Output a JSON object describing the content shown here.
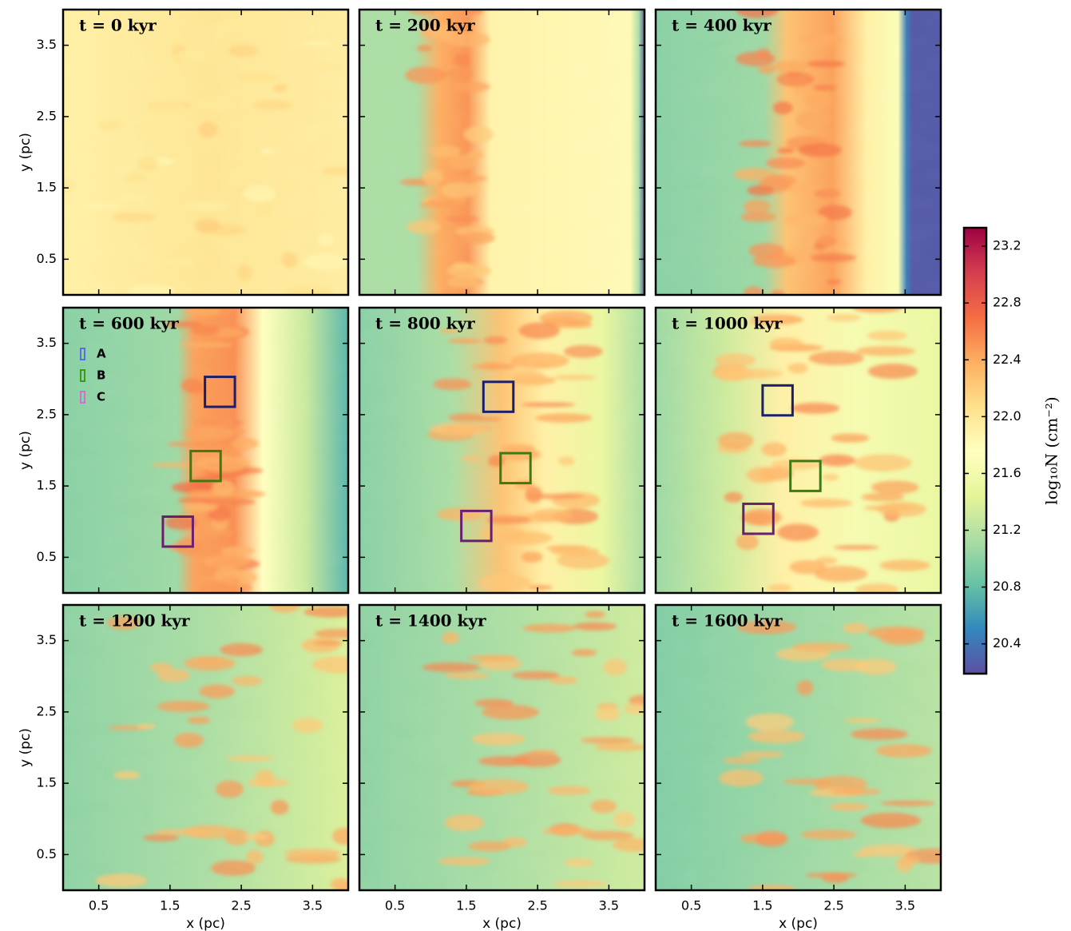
{
  "chart_data": [
    {
      "type": "image",
      "title": "t = 0 kyr",
      "xlim": [
        0,
        4
      ],
      "ylim": [
        0,
        4
      ],
      "xticks": [
        0.5,
        1.5,
        2.5,
        3.5
      ],
      "yticks": [
        0.5,
        1.5,
        2.5,
        3.5
      ],
      "ylabel": "y (pc)"
    },
    {
      "type": "image",
      "title": "t = 200 kyr",
      "xlim": [
        0,
        4
      ],
      "ylim": [
        0,
        4
      ],
      "xticks": [
        0.5,
        1.5,
        2.5,
        3.5
      ],
      "yticks": [
        0.5,
        1.5,
        2.5,
        3.5
      ]
    },
    {
      "type": "image",
      "title": "t = 400 kyr",
      "xlim": [
        0,
        4
      ],
      "ylim": [
        0,
        4
      ],
      "xticks": [
        0.5,
        1.5,
        2.5,
        3.5
      ],
      "yticks": [
        0.5,
        1.5,
        2.5,
        3.5
      ]
    },
    {
      "type": "image",
      "title": "t = 600 kyr",
      "xlim": [
        0,
        4
      ],
      "ylim": [
        0,
        4
      ],
      "xticks": [
        0.5,
        1.5,
        2.5,
        3.5
      ],
      "yticks": [
        0.5,
        1.5,
        2.5,
        3.5
      ],
      "ylabel": "y (pc)",
      "legend": "upper left",
      "boxes": [
        {
          "x": 1.99,
          "y": 2.61
        },
        {
          "x": 1.79,
          "y": 1.57
        },
        {
          "x": 1.4,
          "y": 0.65
        }
      ]
    },
    {
      "type": "image",
      "title": "t = 800 kyr",
      "xlim": [
        0,
        4
      ],
      "ylim": [
        0,
        4
      ],
      "xticks": [
        0.5,
        1.5,
        2.5,
        3.5
      ],
      "yticks": [
        0.5,
        1.5,
        2.5,
        3.5
      ],
      "boxes": [
        {
          "x": 1.74,
          "y": 2.54
        },
        {
          "x": 1.98,
          "y": 1.54
        },
        {
          "x": 1.43,
          "y": 0.73
        }
      ]
    },
    {
      "type": "image",
      "title": "t = 1000 kyr",
      "xlim": [
        0,
        4
      ],
      "ylim": [
        0,
        4
      ],
      "xticks": [
        0.5,
        1.5,
        2.5,
        3.5
      ],
      "yticks": [
        0.5,
        1.5,
        2.5,
        3.5
      ],
      "boxes": [
        {
          "x": 1.5,
          "y": 2.49
        },
        {
          "x": 1.89,
          "y": 1.43
        },
        {
          "x": 1.23,
          "y": 0.83
        }
      ]
    },
    {
      "type": "image",
      "title": "t = 1200 kyr",
      "xlim": [
        0,
        4
      ],
      "ylim": [
        0,
        4
      ],
      "xticks": [
        0.5,
        1.5,
        2.5,
        3.5
      ],
      "yticks": [
        0.5,
        1.5,
        2.5,
        3.5
      ],
      "xlabel": "x (pc)",
      "ylabel": "y (pc)"
    },
    {
      "type": "image",
      "title": "t = 1400 kyr",
      "xlim": [
        0,
        4
      ],
      "ylim": [
        0,
        4
      ],
      "xticks": [
        0.5,
        1.5,
        2.5,
        3.5
      ],
      "yticks": [
        0.5,
        1.5,
        2.5,
        3.5
      ],
      "xlabel": "x (pc)"
    },
    {
      "type": "image",
      "title": "t = 1600 kyr",
      "xlim": [
        0,
        4
      ],
      "ylim": [
        0,
        4
      ],
      "xticks": [
        0.5,
        1.5,
        2.5,
        3.5
      ],
      "yticks": [
        0.5,
        1.5,
        2.5,
        3.5
      ],
      "xlabel": "x (pc)"
    }
  ],
  "regions": {
    "names": [
      "A",
      "B",
      "C"
    ],
    "colors": [
      "#1b1f6b",
      "#3d7a12",
      "#6a1f6e"
    ],
    "legend_colors": [
      "#5a6ee0",
      "#3d9a12",
      "#d070d0"
    ],
    "size": 0.42
  },
  "colorbar": {
    "label": "log₁₀N (cm⁻²)",
    "colormap": "Spectral_r",
    "clim": [
      20.19,
      23.33
    ],
    "ticks": [
      20.4,
      20.8,
      21.2,
      21.6,
      {
        "value": 22,
        "label": "22.0"
      },
      22.4,
      22.8,
      23.2
    ]
  }
}
